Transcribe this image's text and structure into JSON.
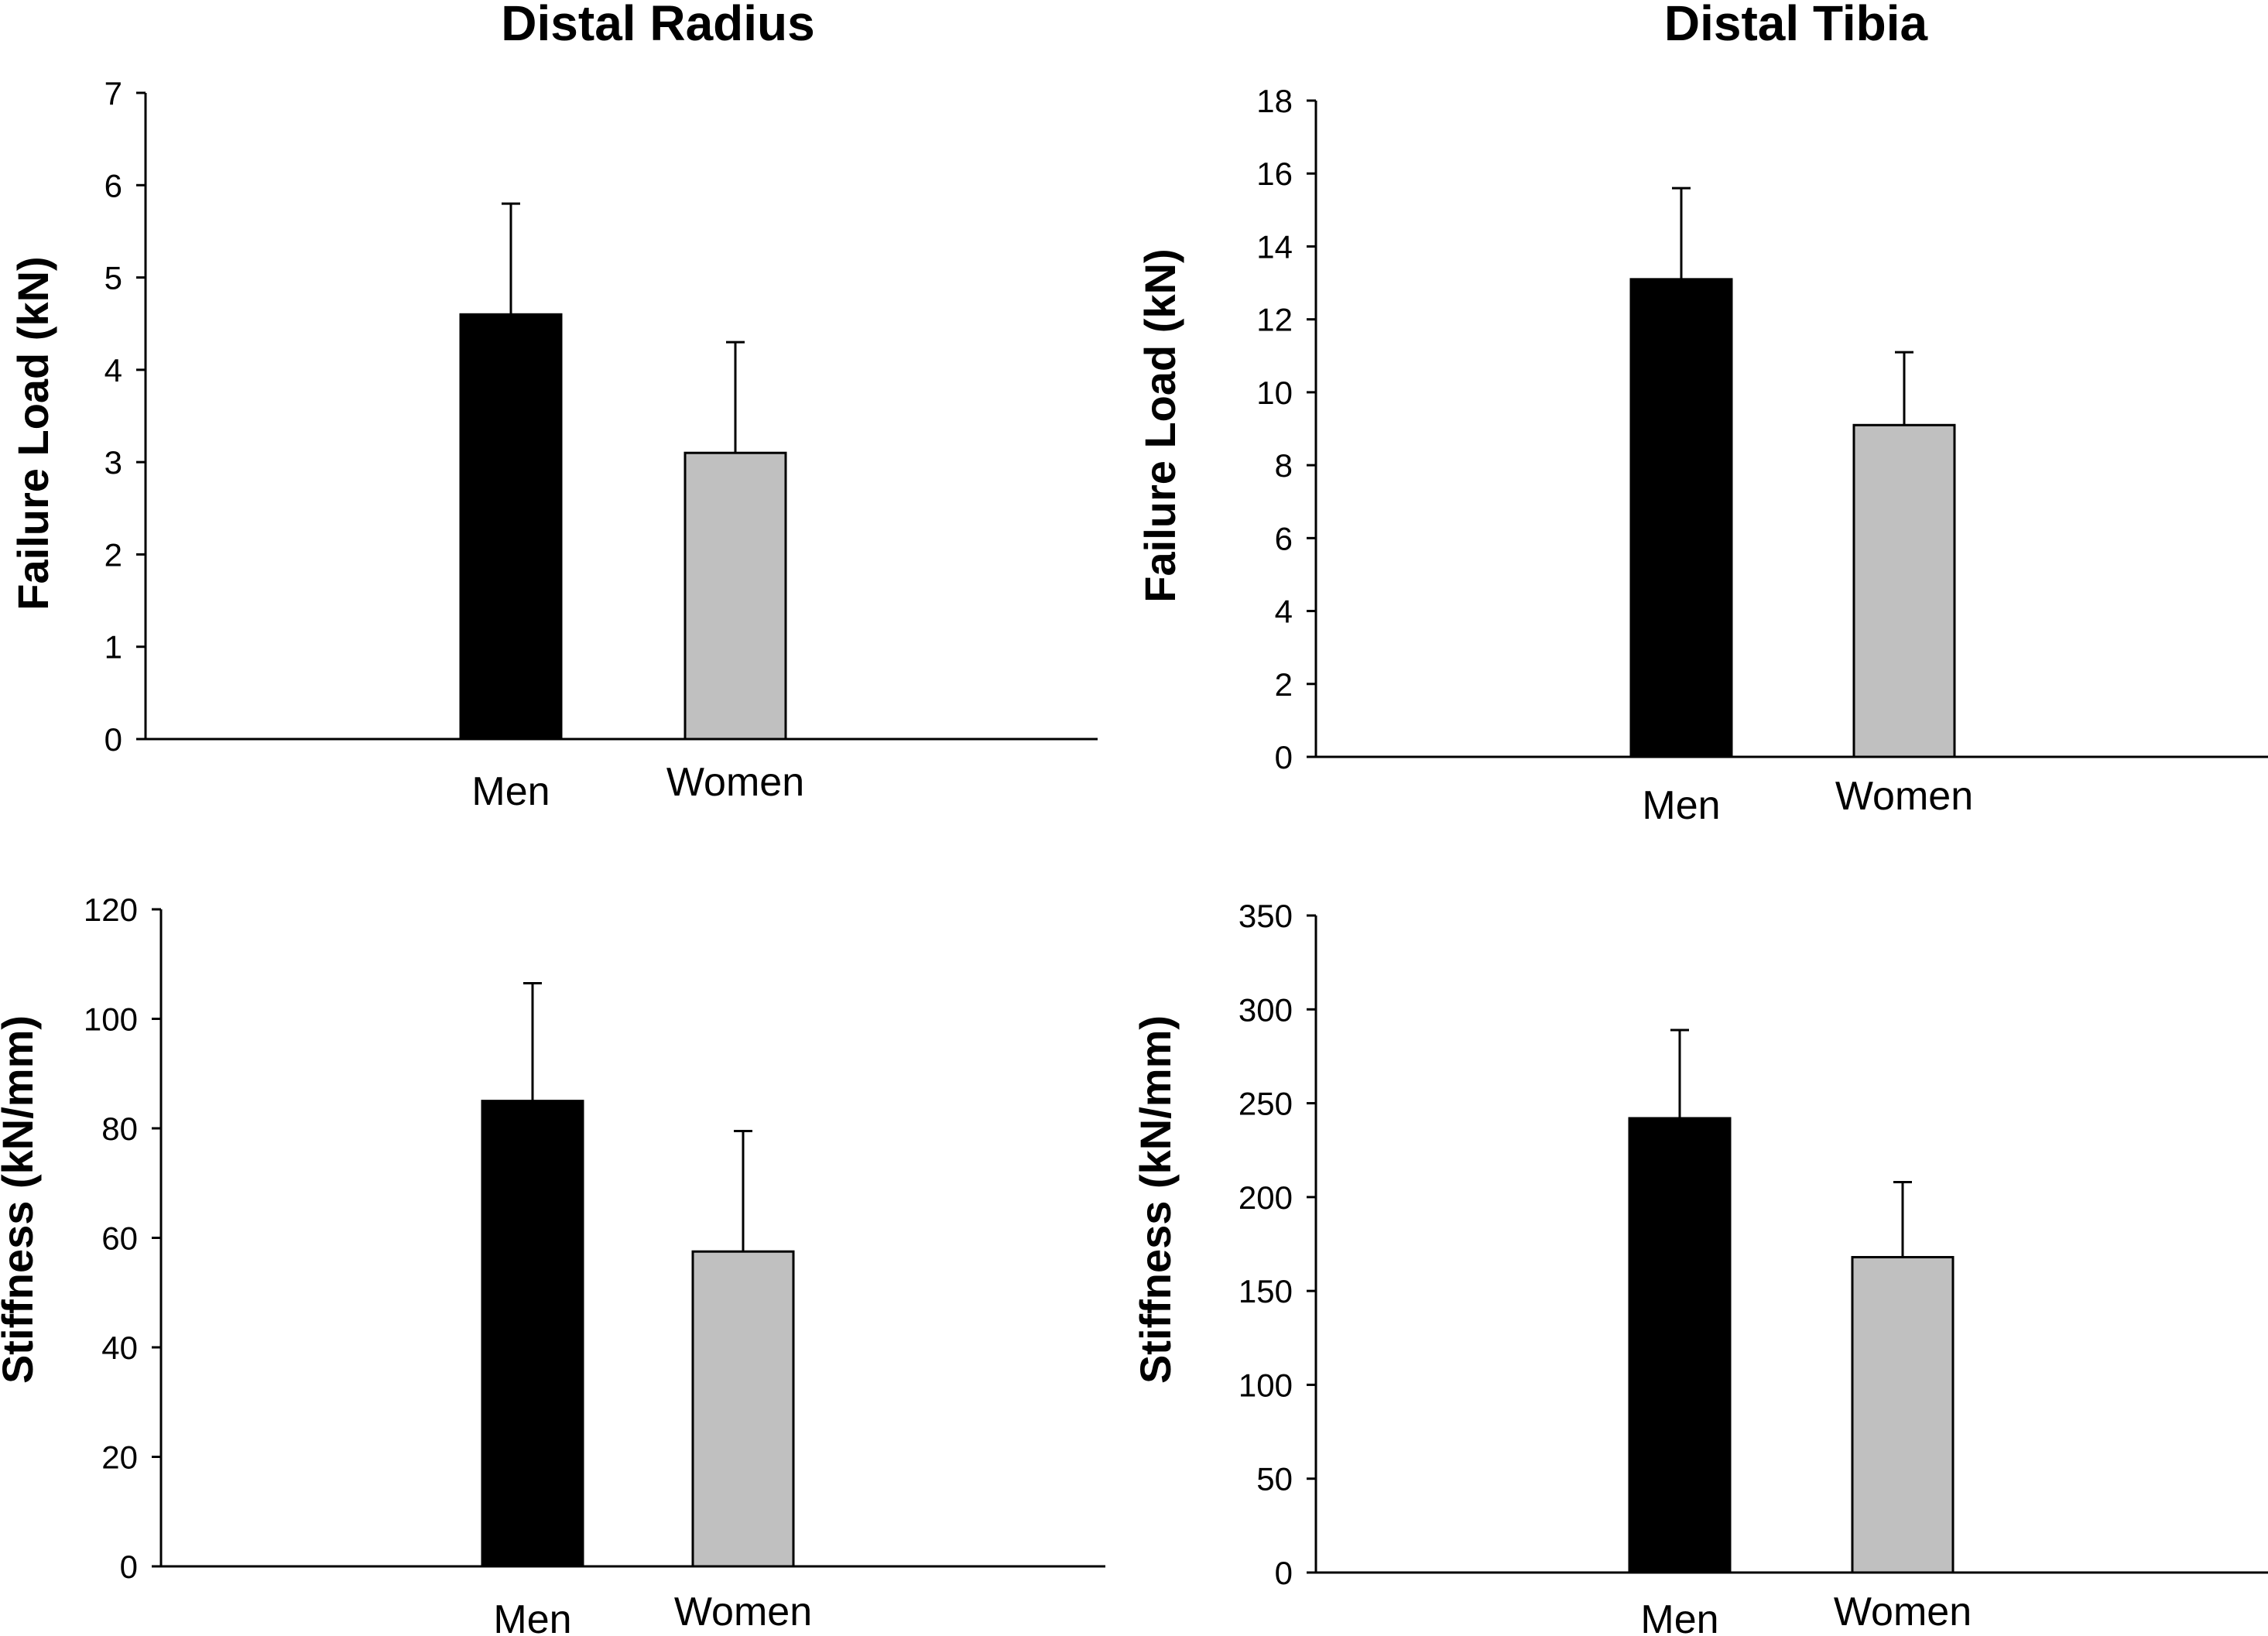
{
  "figure_titles": [
    "Distal Radius",
    "Distal Tibia"
  ],
  "colors": {
    "Men": "#000000",
    "Women": "#c0c0c0"
  },
  "chart_data": [
    {
      "type": "bar",
      "title": "Distal Radius",
      "ylabel": "Failure Load (kN)",
      "xlabel": "",
      "categories": [
        "Men",
        "Women"
      ],
      "values": [
        4.6,
        3.1
      ],
      "error_upper": [
        1.2,
        1.2
      ],
      "ylim": [
        0,
        7
      ],
      "yticks": [
        0,
        1,
        2,
        3,
        4,
        5,
        6,
        7
      ]
    },
    {
      "type": "bar",
      "title": "Distal Tibia",
      "ylabel": "Failure Load (kN)",
      "xlabel": "",
      "categories": [
        "Men",
        "Women"
      ],
      "values": [
        13.1,
        9.1
      ],
      "error_upper": [
        2.5,
        2.0
      ],
      "ylim": [
        0,
        18
      ],
      "yticks": [
        0,
        2,
        4,
        6,
        8,
        10,
        12,
        14,
        16,
        18
      ]
    },
    {
      "type": "bar",
      "title": "",
      "ylabel": "Stiffness (kN/mm)",
      "xlabel": "",
      "categories": [
        "Men",
        "Women"
      ],
      "values": [
        85,
        57.5
      ],
      "error_upper": [
        21.5,
        22
      ],
      "ylim": [
        0,
        120
      ],
      "yticks": [
        0,
        20,
        40,
        60,
        80,
        100,
        120
      ]
    },
    {
      "type": "bar",
      "title": "",
      "ylabel": "Stiffness (kN/mm)",
      "xlabel": "",
      "categories": [
        "Men",
        "Women"
      ],
      "values": [
        242,
        168
      ],
      "error_upper": [
        47,
        40
      ],
      "ylim": [
        0,
        350
      ],
      "yticks": [
        0,
        50,
        100,
        150,
        200,
        250,
        300,
        350
      ]
    }
  ]
}
